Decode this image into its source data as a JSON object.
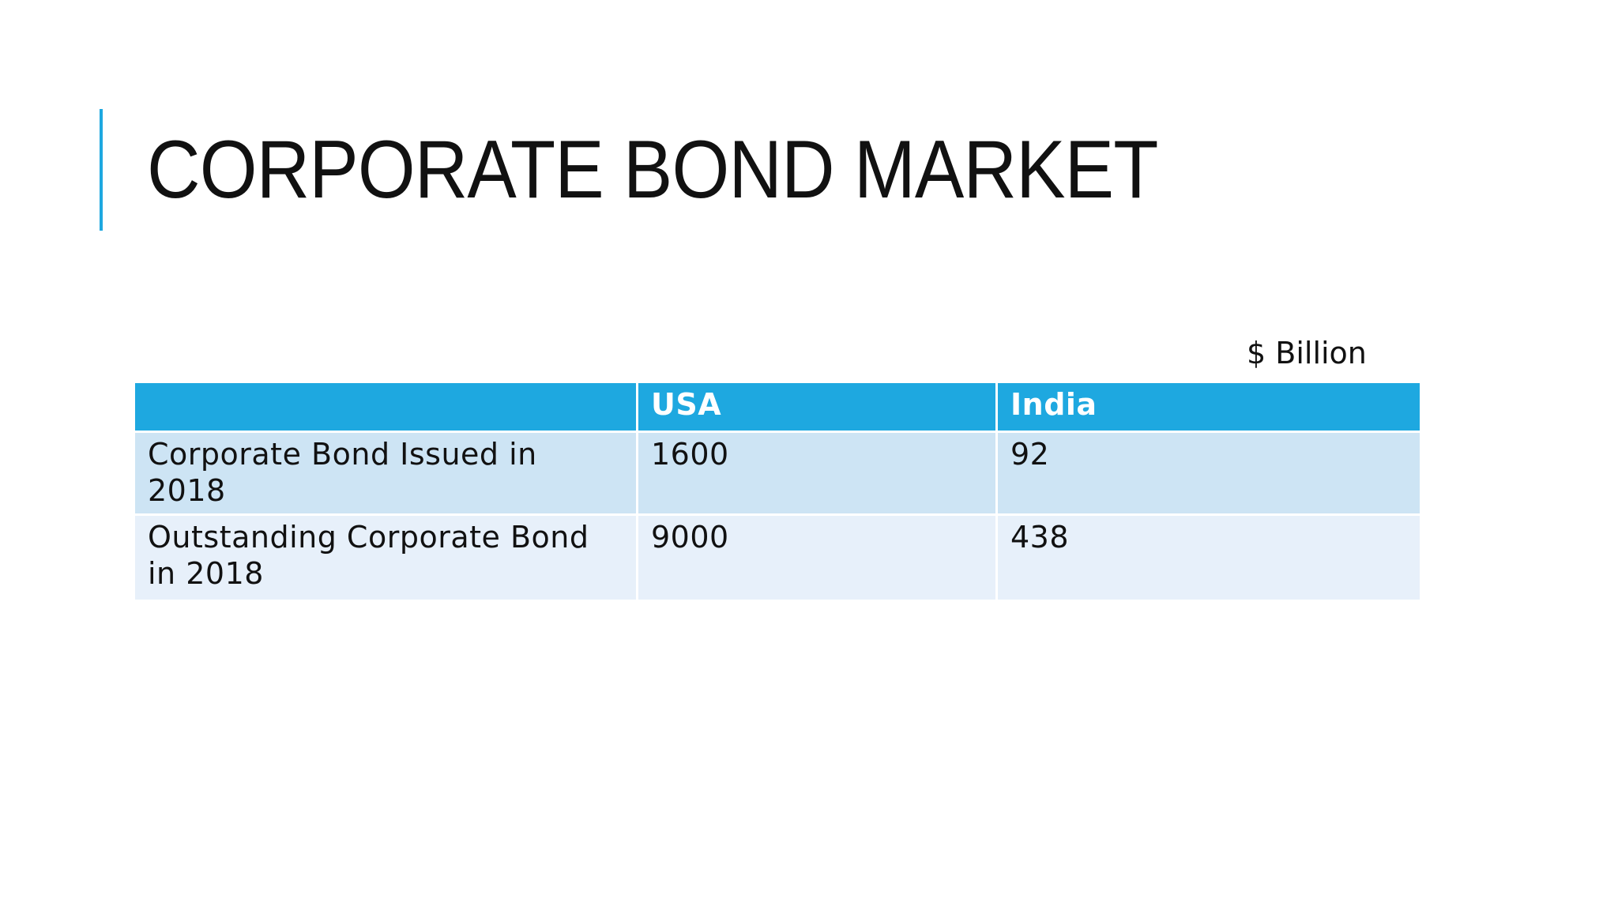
{
  "title": "CORPORATE BOND MARKET",
  "unit_note": "$ Billion",
  "colors": {
    "accent": "#1ea8e0",
    "row_odd": "#cde4f4",
    "row_even": "#e7f0fa"
  },
  "table": {
    "headers": [
      "",
      "USA",
      "India"
    ],
    "rows": [
      [
        "Corporate Bond Issued in 2018",
        "1600",
        "92"
      ],
      [
        "Outstanding Corporate Bond in 2018",
        "9000",
        "438"
      ]
    ]
  }
}
